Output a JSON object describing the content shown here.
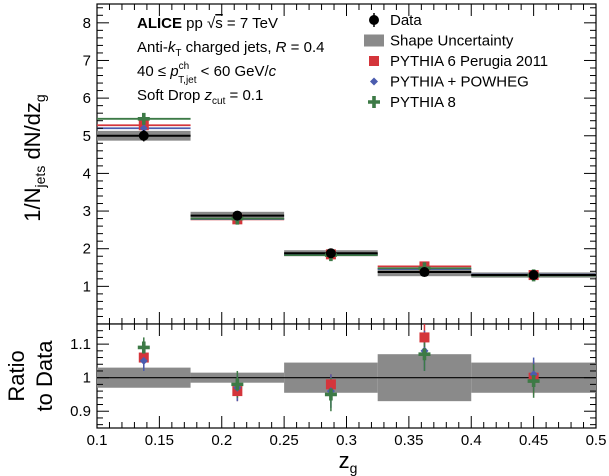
{
  "chart_data": [
    {
      "type": "step-histogram",
      "panel": "main",
      "ylabel": "1/N_jets dN/dz_g",
      "xlim": [
        0.1,
        0.5
      ],
      "ylim": [
        0,
        8.5
      ],
      "yticks": [
        "1",
        "2",
        "3",
        "4",
        "5",
        "6",
        "7",
        "8"
      ],
      "annotations": [
        "ALICE pp √s = 7 TeV",
        "Anti-kT charged jets, R = 0.4",
        "40 ≤ p_T,jet^ch < 60 GeV/c",
        "Soft Drop z_cut = 0.1"
      ],
      "bins": [
        [
          0.1,
          0.175
        ],
        [
          0.175,
          0.25
        ],
        [
          0.25,
          0.325
        ],
        [
          0.325,
          0.4
        ],
        [
          0.4,
          0.5
        ]
      ],
      "series": [
        {
          "name": "Data",
          "x": [
            0.1375,
            0.2125,
            0.2875,
            0.3625,
            0.45
          ],
          "values": [
            5.0,
            2.88,
            1.88,
            1.38,
            1.3
          ],
          "errors": [
            0.15,
            0.05,
            0.04,
            0.04,
            0.03
          ],
          "shape_uncertainty": [
            0.13,
            0.1,
            0.08,
            0.11,
            0.07
          ],
          "color": "#000000",
          "marker": "circle"
        },
        {
          "name": "PYTHIA 6 Perugia 2011",
          "x": [
            0.1375,
            0.2125,
            0.2875,
            0.3625,
            0.45
          ],
          "values": [
            5.28,
            2.78,
            1.85,
            1.53,
            1.3
          ],
          "color": "#d4353b",
          "marker": "square"
        },
        {
          "name": "PYTHIA + POWHEG",
          "x": [
            0.1375,
            0.2125,
            0.2875,
            0.3625,
            0.45
          ],
          "values": [
            5.2,
            2.79,
            1.85,
            1.46,
            1.31
          ],
          "color": "#4b5cae",
          "marker": "diamond"
        },
        {
          "name": "PYTHIA 8",
          "x": [
            0.1375,
            0.2125,
            0.2875,
            0.3625,
            0.45
          ],
          "values": [
            5.45,
            2.8,
            1.83,
            1.48,
            1.29
          ],
          "color": "#3d7a46",
          "marker": "cross"
        }
      ]
    },
    {
      "type": "ratio",
      "panel": "ratio",
      "ylabel": "Ratio to Data",
      "xlabel": "z_g",
      "xlim": [
        0.1,
        0.5
      ],
      "ylim": [
        0.85,
        1.16
      ],
      "yticks": [
        "0.9",
        "1",
        "1.1"
      ],
      "xticks": [
        "0.1",
        "0.15",
        "0.2",
        "0.25",
        "0.3",
        "0.35",
        "0.4",
        "0.45",
        "0.5"
      ],
      "band_bins": [
        [
          0.1,
          0.175
        ],
        [
          0.175,
          0.25
        ],
        [
          0.25,
          0.325
        ],
        [
          0.325,
          0.4
        ],
        [
          0.4,
          0.5
        ]
      ],
      "band_halfwidth": [
        0.03,
        0.015,
        0.045,
        0.07,
        0.045
      ],
      "series": [
        {
          "name": "PYTHIA 6 Perugia 2011",
          "x": [
            0.1375,
            0.2125,
            0.2875,
            0.3625,
            0.45
          ],
          "values": [
            1.06,
            0.96,
            0.98,
            1.12,
            1.0
          ],
          "errors": [
            0.03,
            0.03,
            0.03,
            0.04,
            0.05
          ],
          "color": "#d4353b"
        },
        {
          "name": "PYTHIA + POWHEG",
          "x": [
            0.1375,
            0.2125,
            0.2875,
            0.3625,
            0.45
          ],
          "values": [
            1.05,
            0.97,
            0.96,
            1.08,
            1.01
          ],
          "errors": [
            0.03,
            0.04,
            0.05,
            0.06,
            0.05
          ],
          "color": "#4b5cae"
        },
        {
          "name": "PYTHIA 8",
          "x": [
            0.1375,
            0.2125,
            0.2875,
            0.3625,
            0.45
          ],
          "values": [
            1.09,
            0.98,
            0.95,
            1.07,
            0.99
          ],
          "errors": [
            0.03,
            0.04,
            0.05,
            0.05,
            0.05
          ],
          "color": "#3d7a46"
        }
      ]
    }
  ],
  "legend": {
    "items": [
      {
        "label": "Data",
        "marker": "circle",
        "color": "#000000"
      },
      {
        "label": "Shape Uncertainty",
        "marker": "band",
        "color": "#8a8a8a"
      },
      {
        "label": "PYTHIA 6 Perugia 2011",
        "marker": "square",
        "color": "#d4353b"
      },
      {
        "label": "PYTHIA + POWHEG",
        "marker": "diamond",
        "color": "#4b5cae"
      },
      {
        "label": "PYTHIA 8",
        "marker": "cross",
        "color": "#3d7a46"
      }
    ]
  }
}
